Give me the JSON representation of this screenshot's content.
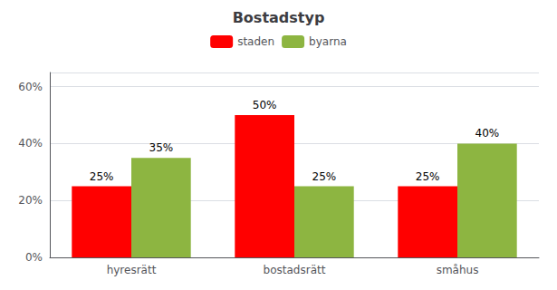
{
  "chart_data": {
    "type": "bar",
    "title": "Bostadstyp",
    "categories": [
      "hyresrätt",
      "bostadsrätt",
      "småhus"
    ],
    "series": [
      {
        "name": "staden",
        "color": "#FF0000",
        "values": [
          0.25,
          0.5,
          0.25
        ],
        "value_labels": [
          "25%",
          "50%",
          "25%"
        ]
      },
      {
        "name": "byarna",
        "color": "#8DB541",
        "values": [
          0.35,
          0.25,
          0.4
        ],
        "value_labels": [
          "35%",
          "25%",
          "40%"
        ]
      }
    ],
    "ylim": [
      0,
      0.65
    ],
    "yticks": [
      {
        "value": 0.0,
        "label": "0%"
      },
      {
        "value": 0.2,
        "label": "20%"
      },
      {
        "value": 0.4,
        "label": "40%"
      },
      {
        "value": 0.6,
        "label": "60%"
      }
    ],
    "grid": true,
    "legend": "top",
    "data_labels": true
  }
}
